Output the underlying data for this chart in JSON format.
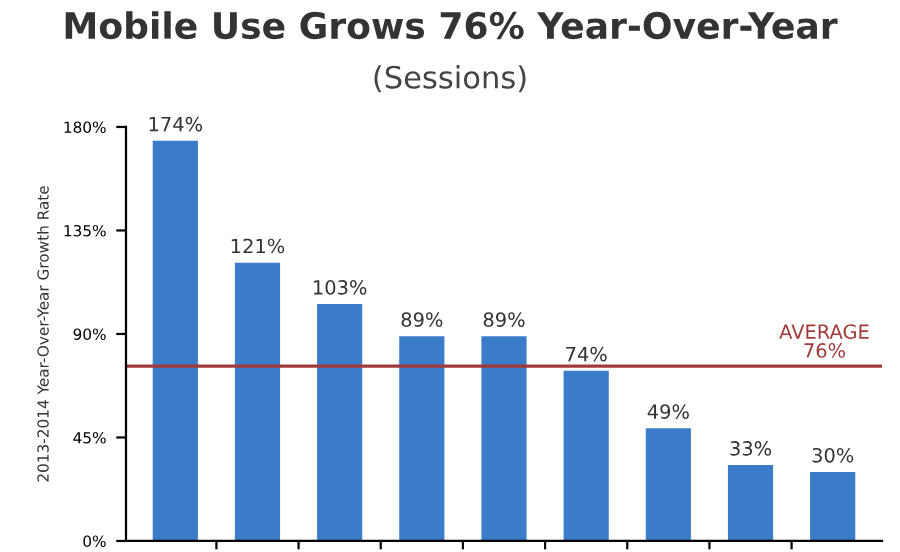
{
  "chart_data": {
    "type": "bar",
    "title": "Mobile Use Grows 76% Year-Over-Year",
    "subtitle": "(Sessions)",
    "ylabel": "2013-2014 Year-Over-Year Growth Rate",
    "categories": [
      null,
      null,
      null,
      null,
      null,
      null,
      null,
      null,
      null
    ],
    "values": [
      174,
      121,
      103,
      89,
      89,
      74,
      49,
      33,
      30
    ],
    "value_labels": [
      "174%",
      "121%",
      "103%",
      "89%",
      "89%",
      "74%",
      "49%",
      "33%",
      "30%"
    ],
    "color": "#3a7cc9",
    "ylim": [
      0,
      180
    ],
    "yticks": [
      {
        "value": 0,
        "label": "0%"
      },
      {
        "value": 45,
        "label": "45%"
      },
      {
        "value": 90,
        "label": "90%"
      },
      {
        "value": 135,
        "label": "135%"
      },
      {
        "value": 180,
        "label": "180%"
      }
    ],
    "ref_lines": [
      {
        "axis": "y",
        "value": 76,
        "label": "AVERAGE\n76%",
        "color": "#a33a3a",
        "line_style": "solid"
      }
    ],
    "grid": false,
    "legend": false
  }
}
